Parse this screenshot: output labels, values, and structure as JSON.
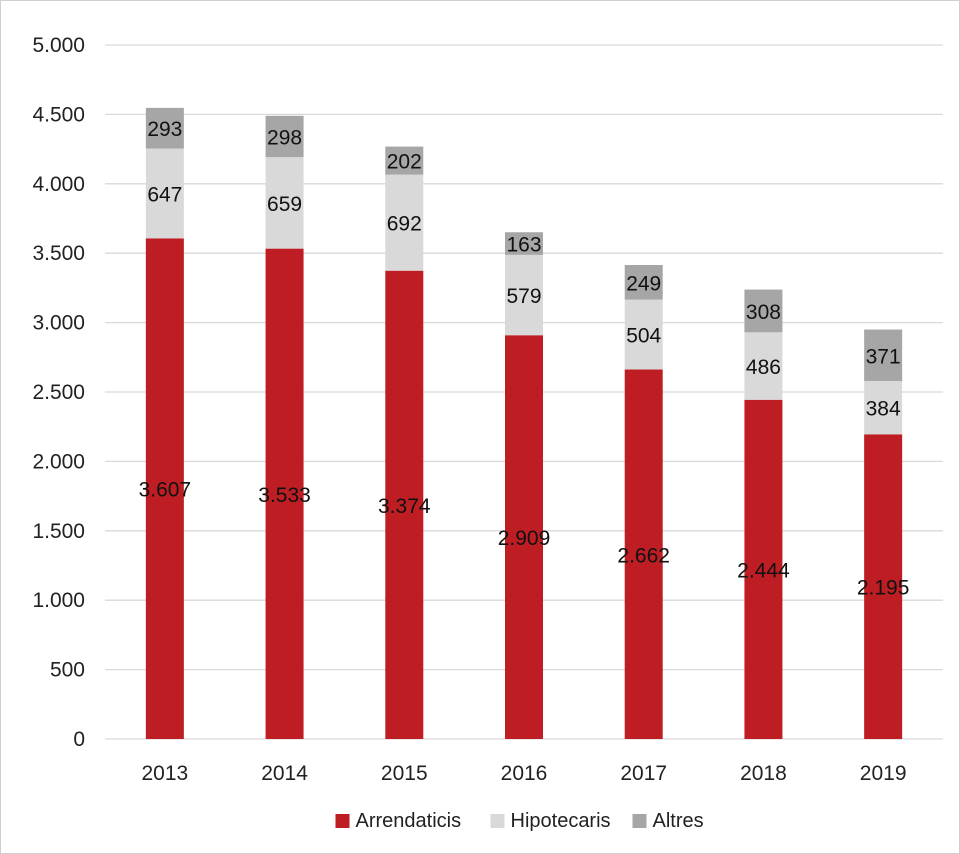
{
  "chart_data": {
    "type": "bar",
    "stacked": true,
    "categories": [
      "2013",
      "2014",
      "2015",
      "2016",
      "2017",
      "2018",
      "2019"
    ],
    "series": [
      {
        "name": "Arrendaticis",
        "color": "#be1e23",
        "values": [
          3607,
          3533,
          3374,
          2909,
          2662,
          2444,
          2195
        ],
        "labels": [
          "3.607",
          "3.533",
          "3.374",
          "2.909",
          "2.662",
          "2.444",
          "2.195"
        ]
      },
      {
        "name": "Hipotecaris",
        "color": "#d9d9d9",
        "values": [
          647,
          659,
          692,
          579,
          504,
          486,
          384
        ],
        "labels": [
          "647",
          "659",
          "692",
          "579",
          "504",
          "486",
          "384"
        ]
      },
      {
        "name": "Altres",
        "color": "#a6a6a6",
        "values": [
          293,
          298,
          202,
          163,
          249,
          308,
          371
        ],
        "labels": [
          "293",
          "298",
          "202",
          "163",
          "249",
          "308",
          "371"
        ]
      }
    ],
    "ylim": [
      0,
      5000
    ],
    "yticks": [
      0,
      500,
      1000,
      1500,
      2000,
      2500,
      3000,
      3500,
      4000,
      4500,
      5000
    ],
    "ytick_labels": [
      "0",
      "500",
      "1.000",
      "1.500",
      "2.000",
      "2.500",
      "3.000",
      "3.500",
      "4.000",
      "4.500",
      "5.000"
    ],
    "grid": true,
    "legend": "bottom",
    "gridline_color": "#d9d9d9"
  }
}
